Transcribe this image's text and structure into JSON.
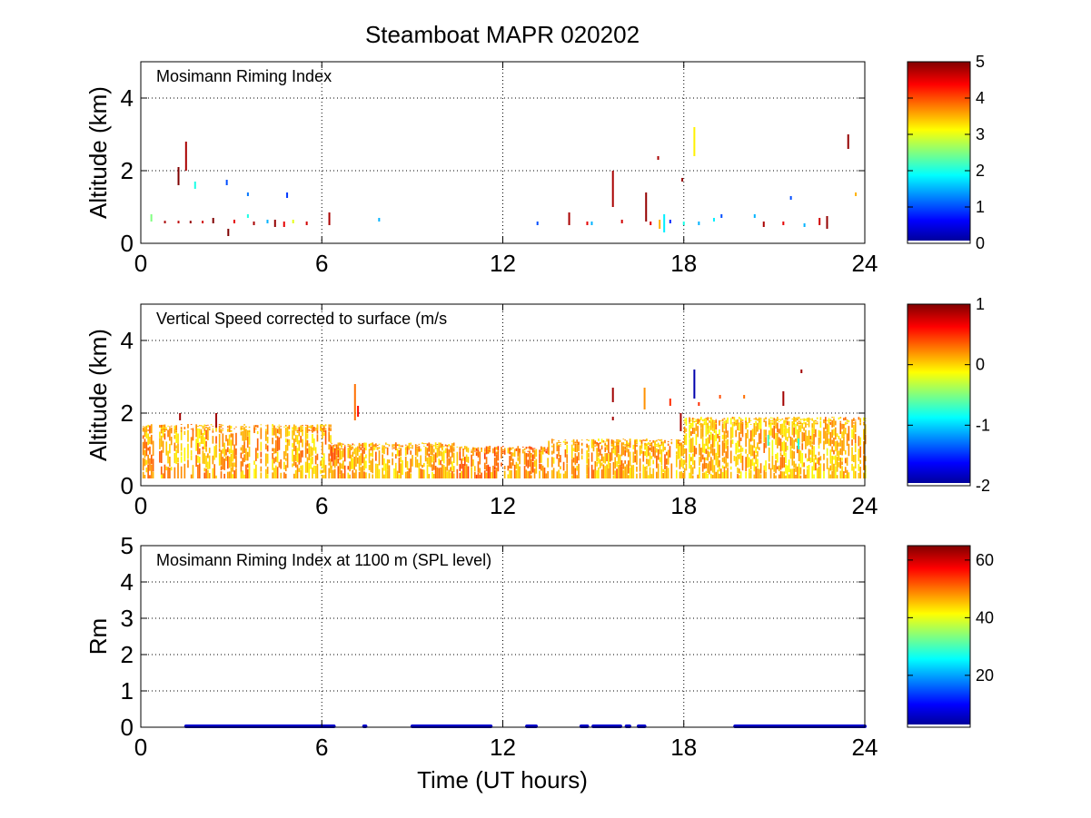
{
  "figure_title": "Steamboat MAPR 020202",
  "colormap": [
    "#00008f",
    "#0000ff",
    "#0080ff",
    "#00ffff",
    "#80ff80",
    "#ffff00",
    "#ff8000",
    "#ff0000",
    "#800000"
  ],
  "chart_data": [
    {
      "type": "heatmap",
      "title": "Mosimann Riming Index",
      "xlabel": "",
      "ylabel": "Altitude (km)",
      "xlim": [
        0,
        24
      ],
      "ylim": [
        0,
        5
      ],
      "xticks": [
        0,
        6,
        12,
        18,
        24
      ],
      "yticks": [
        0,
        2,
        4
      ],
      "grid": true,
      "colorbar": {
        "range": [
          0,
          5
        ],
        "ticks": [
          0,
          1,
          2,
          3,
          4,
          5
        ]
      },
      "streaks": [
        [
          0.35,
          0.6,
          0.8,
          2.5
        ],
        [
          0.8,
          0.55,
          0.62,
          4.8
        ],
        [
          1.25,
          0.55,
          0.62,
          4.7
        ],
        [
          1.25,
          1.6,
          2.1,
          5.0
        ],
        [
          1.5,
          2.0,
          2.8,
          4.8
        ],
        [
          1.65,
          0.55,
          0.62,
          4.9
        ],
        [
          1.8,
          1.5,
          1.7,
          2.0
        ],
        [
          2.05,
          0.55,
          0.62,
          4.6
        ],
        [
          2.4,
          0.55,
          0.7,
          5.0
        ],
        [
          2.85,
          1.6,
          1.75,
          1.0
        ],
        [
          2.9,
          0.2,
          0.4,
          5.0
        ],
        [
          3.1,
          0.55,
          0.65,
          4.5
        ],
        [
          3.55,
          0.7,
          0.8,
          2.0
        ],
        [
          3.55,
          1.3,
          1.4,
          1.2
        ],
        [
          3.75,
          0.5,
          0.6,
          4.8
        ],
        [
          4.2,
          0.55,
          0.65,
          1.5
        ],
        [
          4.45,
          0.45,
          0.65,
          4.9
        ],
        [
          4.75,
          0.45,
          0.6,
          4.5
        ],
        [
          4.85,
          1.25,
          1.4,
          0.9
        ],
        [
          5.05,
          0.55,
          0.65,
          3.0
        ],
        [
          5.5,
          0.5,
          0.6,
          4.6
        ],
        [
          6.25,
          0.5,
          0.85,
          4.8
        ],
        [
          7.9,
          0.6,
          0.7,
          1.5
        ],
        [
          13.15,
          0.5,
          0.6,
          1.0
        ],
        [
          14.2,
          0.5,
          0.85,
          4.8
        ],
        [
          14.8,
          0.5,
          0.6,
          4.5
        ],
        [
          14.95,
          0.5,
          0.6,
          1.5
        ],
        [
          15.65,
          1.0,
          2.0,
          4.8
        ],
        [
          15.95,
          0.55,
          0.65,
          4.6
        ],
        [
          16.75,
          0.6,
          1.4,
          4.9
        ],
        [
          16.9,
          0.5,
          0.6,
          4.5
        ],
        [
          17.15,
          2.3,
          2.4,
          4.8
        ],
        [
          17.2,
          0.4,
          0.65,
          3.5
        ],
        [
          17.35,
          0.3,
          0.8,
          1.8
        ],
        [
          17.55,
          0.55,
          0.65,
          0.8
        ],
        [
          17.95,
          1.7,
          1.8,
          4.9
        ],
        [
          18.0,
          0.5,
          0.6,
          2.0
        ],
        [
          18.35,
          2.4,
          3.2,
          3.2
        ],
        [
          18.5,
          0.5,
          0.6,
          1.5
        ],
        [
          19.0,
          0.6,
          0.7,
          1.8
        ],
        [
          19.25,
          0.7,
          0.8,
          1.0
        ],
        [
          20.35,
          0.7,
          0.8,
          1.5
        ],
        [
          20.65,
          0.45,
          0.6,
          4.8
        ],
        [
          21.3,
          0.5,
          0.6,
          4.5
        ],
        [
          21.55,
          1.2,
          1.3,
          1.0
        ],
        [
          22.0,
          0.45,
          0.55,
          1.5
        ],
        [
          22.5,
          0.5,
          0.7,
          4.6
        ],
        [
          22.75,
          0.4,
          0.75,
          4.9
        ],
        [
          23.45,
          2.6,
          3.0,
          4.9
        ],
        [
          23.7,
          1.3,
          1.4,
          3.5
        ]
      ]
    },
    {
      "type": "heatmap",
      "title": "Vertical Speed corrected to surface (m/s",
      "xlabel": "",
      "ylabel": "Altitude (km)",
      "xlim": [
        0,
        24
      ],
      "ylim": [
        0,
        5
      ],
      "xticks": [
        0,
        6,
        12,
        18,
        24
      ],
      "yticks": [
        0,
        2,
        4
      ],
      "grid": true,
      "colorbar": {
        "range": [
          -2,
          1
        ],
        "ticks": [
          -2,
          -1,
          0,
          1
        ]
      },
      "bands": [
        [
          0,
          6.3,
          0.2,
          1.7,
          0.05
        ],
        [
          6.3,
          7.0,
          0.2,
          1.2,
          0.1
        ],
        [
          7.0,
          10.5,
          0.2,
          1.2,
          0.05
        ],
        [
          10.5,
          13.5,
          0.2,
          1.1,
          0.15
        ],
        [
          13.5,
          18.0,
          0.2,
          1.3,
          0.05
        ],
        [
          18.0,
          24.0,
          0.2,
          1.9,
          0.0
        ]
      ],
      "streaks": [
        [
          7.1,
          1.8,
          2.8,
          0.3
        ],
        [
          7.2,
          1.9,
          2.2,
          0.6
        ],
        [
          15.65,
          2.3,
          2.7,
          0.9
        ],
        [
          15.65,
          1.8,
          1.9,
          0.9
        ],
        [
          16.7,
          2.1,
          2.7,
          0.2
        ],
        [
          17.55,
          2.2,
          2.4,
          0.5
        ],
        [
          17.9,
          1.5,
          2.0,
          0.9
        ],
        [
          18.35,
          2.4,
          3.2,
          -1.9
        ],
        [
          18.5,
          2.2,
          2.3,
          0.5
        ],
        [
          19.2,
          2.4,
          2.5,
          0.4
        ],
        [
          20.0,
          2.4,
          2.5,
          0.3
        ],
        [
          21.3,
          2.2,
          2.6,
          0.9
        ],
        [
          21.9,
          3.1,
          3.2,
          0.9
        ],
        [
          1.3,
          1.8,
          2.0,
          0.9
        ],
        [
          2.5,
          1.6,
          2.0,
          0.9
        ],
        [
          20.8,
          1.1,
          1.4,
          -0.7
        ],
        [
          21.8,
          1.0,
          1.3,
          -0.8
        ]
      ]
    },
    {
      "type": "scatter",
      "title": "Mosimann Riming Index at 1100 m (SPL level)",
      "xlabel": "Time (UT hours)",
      "ylabel": "Rm",
      "xlim": [
        0,
        24
      ],
      "ylim": [
        0,
        5
      ],
      "xticks": [
        0,
        6,
        12,
        18,
        24
      ],
      "yticks": [
        0,
        1,
        2,
        3,
        4,
        5
      ],
      "grid": true,
      "colorbar": {
        "range": [
          2,
          65
        ],
        "ticks": [
          20,
          40,
          60
        ]
      },
      "segments": [
        [
          1.5,
          6.4,
          0
        ],
        [
          7.4,
          7.45,
          0
        ],
        [
          9.0,
          11.6,
          0
        ],
        [
          12.8,
          13.1,
          0
        ],
        [
          14.6,
          14.8,
          0
        ],
        [
          15.0,
          15.9,
          0
        ],
        [
          16.1,
          16.2,
          0
        ],
        [
          16.5,
          16.7,
          0
        ],
        [
          19.7,
          24.0,
          0
        ]
      ]
    }
  ]
}
